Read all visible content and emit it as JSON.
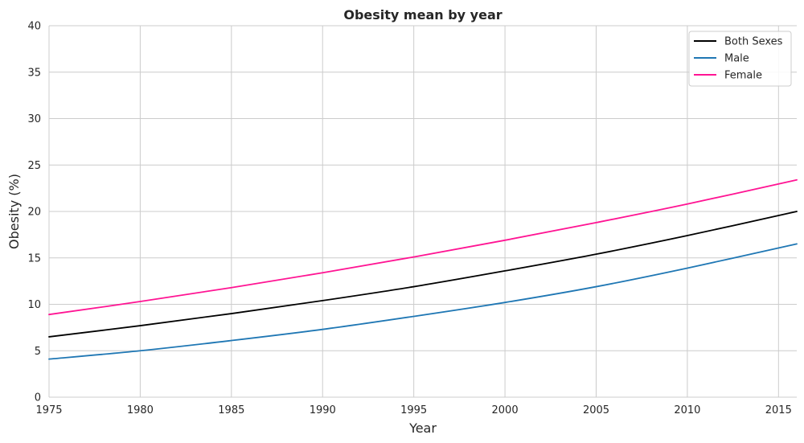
{
  "chart_data": {
    "type": "line",
    "title": "Obesity mean by year",
    "xlabel": "Year",
    "ylabel": "Obesity (%)",
    "xlim": [
      1975,
      2016
    ],
    "ylim": [
      0,
      40
    ],
    "xticks": [
      "1975",
      "1980",
      "1985",
      "1990",
      "1995",
      "2000",
      "2005",
      "2010",
      "2015"
    ],
    "yticks": [
      "0",
      "5",
      "10",
      "15",
      "20",
      "25",
      "30",
      "35",
      "40"
    ],
    "grid": true,
    "legend_position": "top-right",
    "x": [
      1975,
      1980,
      1985,
      1990,
      1995,
      2000,
      2005,
      2010,
      2016
    ],
    "series": [
      {
        "name": "Both Sexes",
        "color": "#000000",
        "values": [
          6.5,
          7.7,
          9.0,
          10.4,
          11.9,
          13.6,
          15.4,
          17.4,
          20.0
        ]
      },
      {
        "name": "Male",
        "color": "#1f77b4",
        "values": [
          4.1,
          5.0,
          6.1,
          7.3,
          8.7,
          10.2,
          11.9,
          13.9,
          16.5
        ]
      },
      {
        "name": "Female",
        "color": "#ff1493",
        "values": [
          8.9,
          10.3,
          11.8,
          13.4,
          15.1,
          16.9,
          18.8,
          20.8,
          23.4
        ]
      }
    ]
  }
}
